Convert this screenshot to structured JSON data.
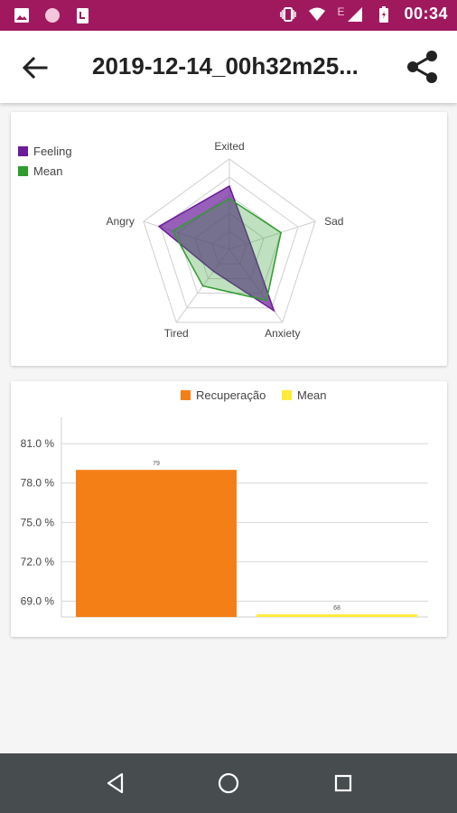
{
  "status_bar": {
    "time": "00:34",
    "network_letter": "E",
    "icons": [
      "image-icon",
      "circle-app-icon",
      "notification-app-icon",
      "vibrate-icon",
      "wifi-icon",
      "signal-icon",
      "battery-icon"
    ],
    "background": "#a0195f"
  },
  "app_bar": {
    "title": "2019-12-14_00h32m25...",
    "back_icon": "arrow-back-icon",
    "share_icon": "share-icon"
  },
  "radar_chart": {
    "chart_data": {
      "type": "radar",
      "axes": [
        "Exited",
        "Sad",
        "Anxiety",
        "Tired",
        "Angry"
      ],
      "max": 5,
      "rings": 5,
      "series": [
        {
          "name": "Feeling",
          "values": [
            3.5,
            1.2,
            4.2,
            1.5,
            4.1
          ],
          "color": "#6a1b9a"
        },
        {
          "name": "Mean",
          "values": [
            2.8,
            3.0,
            3.5,
            2.5,
            3.3
          ],
          "color": "#2e9c2e"
        }
      ],
      "legend": [
        "Feeling",
        "Mean"
      ],
      "legend_position": "top-left"
    }
  },
  "bar_chart": {
    "chart_data": {
      "type": "bar",
      "series": [
        {
          "name": "Recuperação",
          "value": 79,
          "color": "#f57f17"
        },
        {
          "name": "Mean",
          "value": 68,
          "color": "#ffeb3b"
        }
      ],
      "bar_labels": [
        "79",
        "68"
      ],
      "y_ticks": [
        "81.0 %",
        "78.0 %",
        "75.0 %",
        "72.0 %",
        "69.0 %"
      ],
      "y_tick_values": [
        81,
        78,
        75,
        72,
        69
      ],
      "ylim": [
        67.8,
        83.0
      ],
      "legend_position": "top-center"
    }
  },
  "nav_bar": {
    "icons": [
      "back-triangle-icon",
      "home-circle-icon",
      "recents-square-icon"
    ]
  }
}
